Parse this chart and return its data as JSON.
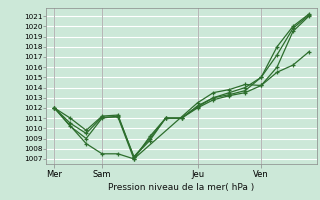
{
  "background_color": "#cce8d8",
  "grid_color": "#ffffff",
  "line_color": "#2d6e2d",
  "title": "Pression niveau de la mer( hPa )",
  "ylim": [
    1006.5,
    1021.8
  ],
  "yticks": [
    1007,
    1008,
    1009,
    1010,
    1011,
    1012,
    1013,
    1014,
    1015,
    1016,
    1017,
    1018,
    1019,
    1020,
    1021
  ],
  "day_labels": [
    "Mer",
    "Sam",
    "Jeu",
    "Ven"
  ],
  "day_positions": [
    0,
    24,
    72,
    104
  ],
  "xlim": [
    -4,
    132
  ],
  "series": [
    {
      "x": [
        0,
        8,
        16,
        24,
        32,
        40,
        48,
        56,
        64,
        72,
        80,
        88,
        96,
        104,
        112,
        120,
        128
      ],
      "y": [
        1012.0,
        1011.0,
        1009.8,
        1011.2,
        1011.3,
        1007.2,
        1008.8,
        1011.0,
        1011.0,
        1012.2,
        1013.0,
        1013.5,
        1014.0,
        1015.0,
        1018.0,
        1020.0,
        1021.2
      ]
    },
    {
      "x": [
        0,
        8,
        16,
        24,
        32,
        40,
        48,
        56,
        64,
        72,
        80,
        88,
        96,
        104,
        112,
        120,
        128
      ],
      "y": [
        1012.0,
        1010.2,
        1009.0,
        1011.0,
        1011.2,
        1007.2,
        1009.0,
        1011.0,
        1011.0,
        1012.0,
        1012.8,
        1013.2,
        1013.5,
        1014.2,
        1016.0,
        1019.5,
        1021.0
      ]
    },
    {
      "x": [
        0,
        8,
        16,
        24,
        32,
        40,
        48,
        56,
        64,
        72,
        80,
        88,
        96,
        104,
        112,
        120,
        128
      ],
      "y": [
        1012.0,
        1010.5,
        1009.5,
        1011.1,
        1011.1,
        1007.0,
        1009.2,
        1011.0,
        1011.0,
        1012.1,
        1013.0,
        1013.3,
        1013.7,
        1015.0,
        1017.2,
        1019.8,
        1021.1
      ]
    },
    {
      "x": [
        0,
        16,
        24,
        32,
        40,
        72,
        80,
        88,
        96,
        104,
        112,
        120,
        128
      ],
      "y": [
        1012.0,
        1008.5,
        1007.5,
        1007.5,
        1007.0,
        1012.5,
        1013.5,
        1013.8,
        1014.3,
        1014.2,
        1015.5,
        1016.2,
        1017.5
      ]
    }
  ]
}
